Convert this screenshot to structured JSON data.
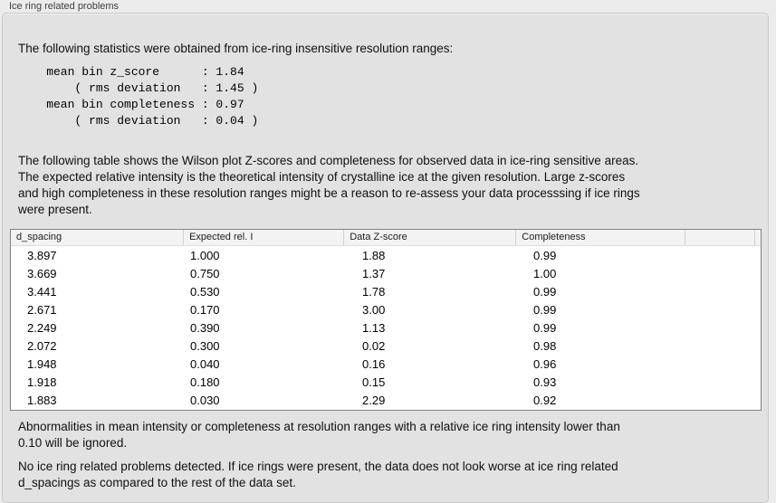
{
  "panel": {
    "title": "Ice ring related problems"
  },
  "intro_text": "The following statistics were obtained from ice-ring insensitive resolution ranges:",
  "stats_block": "    mean bin z_score      : 1.84\n        ( rms deviation   : 1.45 )\n    mean bin completeness : 0.97\n        ( rms deviation   : 0.04 )",
  "stats": {
    "mean_bin_z_score": "1.84",
    "z_score_rms_deviation": "1.45",
    "mean_bin_completeness": "0.97",
    "completeness_rms_deviation": "0.04"
  },
  "table_note": "The following table shows the Wilson plot Z-scores and completeness for observed data in ice-ring sensitive areas.\nThe expected relative intensity is the theoretical intensity of crystalline ice at the given resolution. Large z-scores\nand high completeness in these resolution ranges might be a reason to re-assess your data processsing if ice rings\nwere present.",
  "table": {
    "columns": [
      "d_spacing",
      "Expected rel. I",
      "Data Z-score",
      "Completeness"
    ],
    "rows": [
      [
        "3.897",
        "1.000",
        "1.88",
        "0.99"
      ],
      [
        "3.669",
        "0.750",
        "1.37",
        "1.00"
      ],
      [
        "3.441",
        "0.530",
        "1.78",
        "0.99"
      ],
      [
        "2.671",
        "0.170",
        "3.00",
        "0.99"
      ],
      [
        "2.249",
        "0.390",
        "1.13",
        "0.99"
      ],
      [
        "2.072",
        "0.300",
        "0.02",
        "0.98"
      ],
      [
        "1.948",
        "0.040",
        "0.16",
        "0.96"
      ],
      [
        "1.918",
        "0.180",
        "0.15",
        "0.93"
      ],
      [
        "1.883",
        "0.030",
        "2.29",
        "0.92"
      ]
    ]
  },
  "ignore_note": "Abnormalities in mean intensity or completeness at resolution ranges with a relative ice ring intensity lower than\n0.10 will be ignored.",
  "conclusion": "No ice ring related problems detected. If ice rings were present, the data does not look worse at ice ring related\nd_spacings as compared to the rest of the data set."
}
